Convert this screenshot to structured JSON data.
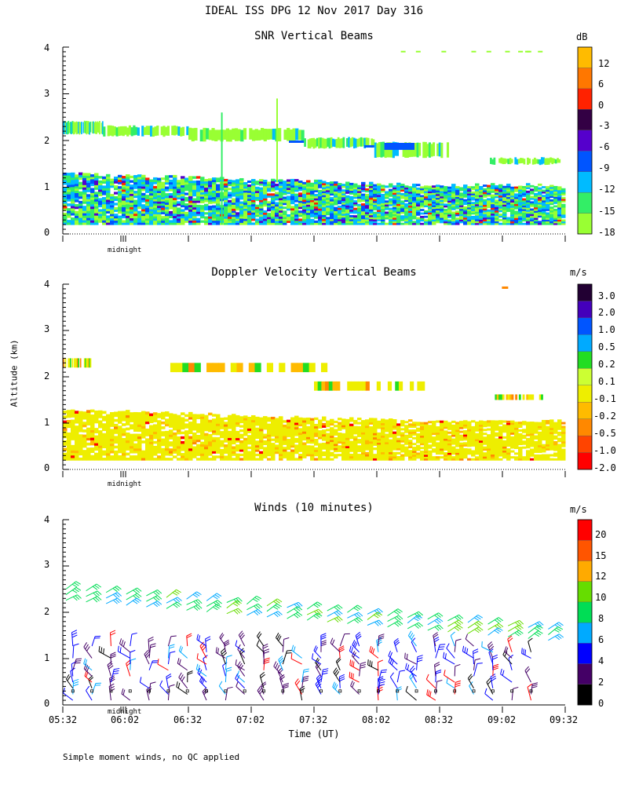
{
  "main_title": "IDEAL ISS DPG  12 Nov 2017 Day 316",
  "ylabel": "Altitude (km)",
  "footnote": "Simple moment winds, no QC applied",
  "colors": {
    "snr": [
      "#99ff33",
      "#33ee66",
      "#00bbff",
      "#0055ff",
      "#5500cc",
      "#330044",
      "#ff2200",
      "#ff7700",
      "#ffbb00"
    ],
    "dop": [
      "#ff0000",
      "#ff4400",
      "#ff8800",
      "#ffbb00",
      "#eeee00",
      "#ccff33",
      "#22dd22",
      "#00aaff",
      "#0055ff",
      "#4400bb",
      "#220033"
    ],
    "wind": [
      "#000000",
      "#440066",
      "#0000ff",
      "#00aaff",
      "#00dd55",
      "#66dd00",
      "#ffaa00",
      "#ff5500",
      "#ff0000"
    ]
  },
  "chart_data": [
    {
      "type": "heatmap",
      "title": "SNR Vertical Beams",
      "ylabel": "Altitude (km)",
      "ylim": [
        0,
        4
      ],
      "yticks": [
        "0",
        "1",
        "2",
        "3",
        "4"
      ],
      "x_marker": "midnight",
      "colorbar": {
        "unit": "dB",
        "labels": [
          "12",
          "6",
          "0",
          "-3",
          "-6",
          "-9",
          "-12",
          "-15",
          "-18"
        ]
      },
      "regions": [
        {
          "t": [
            0,
            0.03
          ],
          "alt": [
            2.15,
            2.4
          ],
          "value": -15
        },
        {
          "t": [
            0.03,
            0.3
          ],
          "alt": [
            2.1,
            2.35
          ],
          "value": -15
        },
        {
          "t": [
            0.3,
            0.47
          ],
          "alt": [
            2.05,
            2.3
          ],
          "value": -18
        },
        {
          "t": [
            0.47,
            0.78
          ],
          "alt": [
            1.65,
            1.95
          ],
          "value": -15
        },
        {
          "t": [
            0.85,
            1.0
          ],
          "alt": [
            1.5,
            1.6
          ],
          "value": -18
        },
        {
          "t": [
            0,
            1.0
          ],
          "alt": [
            0.2,
            1.3
          ],
          "value": -12
        }
      ]
    },
    {
      "type": "heatmap",
      "title": "Doppler Velocity Vertical Beams",
      "ylabel": "Altitude (km)",
      "ylim": [
        0,
        4
      ],
      "yticks": [
        "0",
        "1",
        "2",
        "3",
        "4"
      ],
      "x_marker": "midnight",
      "colorbar": {
        "unit": "m/s",
        "labels": [
          "3.0",
          "2.0",
          "1.0",
          "0.5",
          "0.2",
          "0.1",
          "-0.1",
          "-0.2",
          "-0.5",
          "-1.0",
          "-2.0"
        ]
      },
      "regions": [
        {
          "t": [
            0,
            0.05
          ],
          "alt": [
            2.2,
            2.4
          ],
          "value": -0.1
        },
        {
          "t": [
            0.2,
            0.55
          ],
          "alt": [
            2.1,
            2.3
          ],
          "value": -0.1
        },
        {
          "t": [
            0.5,
            0.72
          ],
          "alt": [
            1.7,
            1.9
          ],
          "value": -0.1
        },
        {
          "t": [
            0.88,
            0.97
          ],
          "alt": [
            1.5,
            1.65
          ],
          "value": -0.1
        },
        {
          "t": [
            0,
            1.0
          ],
          "alt": [
            0.2,
            1.3
          ],
          "value": -0.1
        }
      ]
    },
    {
      "type": "scatter",
      "title": "Winds (10 minutes)",
      "ylabel": "Altitude (km)",
      "xlabel": "Time (UT)",
      "ylim": [
        0,
        4
      ],
      "yticks": [
        "0",
        "1",
        "2",
        "3",
        "4"
      ],
      "x_marker": "midnight",
      "xticks": [
        "05:32",
        "06:02",
        "06:32",
        "07:02",
        "07:32",
        "08:02",
        "08:32",
        "09:02",
        "09:32"
      ],
      "colorbar": {
        "unit": "m/s",
        "labels": [
          "20",
          "15",
          "12",
          "10",
          "8",
          "6",
          "4",
          "2",
          "0"
        ]
      },
      "upper_winds_color": "light green / teal, speeds ~8-12 m/s",
      "lower_winds_color": "mixed blue / purple / red, speeds ~2-20 m/s"
    }
  ]
}
